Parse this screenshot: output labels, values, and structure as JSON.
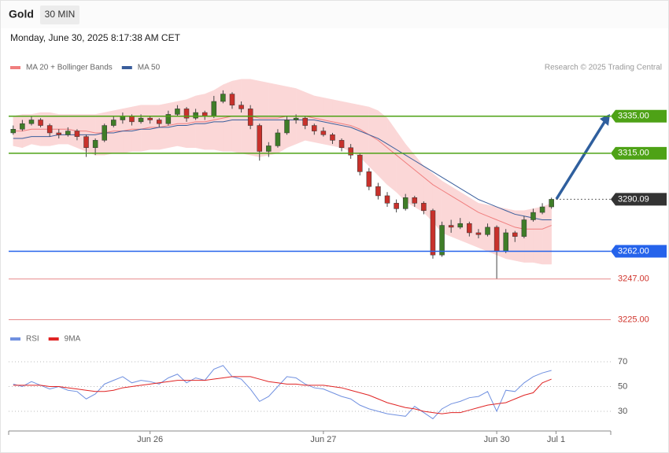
{
  "header": {
    "symbol": "Gold",
    "interval": "30 MIN",
    "timestamp": "Monday, June 30, 2025 8:17:38 AM CET"
  },
  "credit": "Research © 2025 Trading Central",
  "chart_data": [
    {
      "type": "candlestick",
      "up_color": "#3f7d28",
      "down_color": "#c8312b",
      "xlim": [
        -0.5,
        65.5
      ],
      "xticks": [
        {
          "value": 15,
          "label": "Jun 26"
        },
        {
          "value": 34,
          "label": "Jun 27"
        },
        {
          "value": 53,
          "label": "Jun 30"
        },
        {
          "value": 59.5,
          "label": "Jul 1"
        }
      ],
      "ylim": [
        3225,
        3360
      ],
      "candles": [
        [
          3326,
          3330,
          3325,
          3328
        ],
        [
          3328,
          3333,
          3327,
          3331
        ],
        [
          3331,
          3335,
          3330,
          3333
        ],
        [
          3333,
          3334,
          3329,
          3330
        ],
        [
          3330,
          3331,
          3324,
          3326
        ],
        [
          3326,
          3328,
          3323,
          3325
        ],
        [
          3325,
          3329,
          3324,
          3327
        ],
        [
          3327,
          3328,
          3322,
          3324
        ],
        [
          3324,
          3325,
          3313,
          3318
        ],
        [
          3318,
          3323,
          3314,
          3322
        ],
        [
          3322,
          3331,
          3321,
          3330
        ],
        [
          3330,
          3335,
          3329,
          3333
        ],
        [
          3333,
          3337,
          3331,
          3335
        ],
        [
          3335,
          3336,
          3330,
          3332
        ],
        [
          3332,
          3336,
          3331,
          3334
        ],
        [
          3334,
          3335,
          3331,
          3333
        ],
        [
          3333,
          3334,
          3329,
          3331
        ],
        [
          3331,
          3338,
          3330,
          3336
        ],
        [
          3336,
          3341,
          3335,
          3339
        ],
        [
          3339,
          3340,
          3332,
          3334
        ],
        [
          3334,
          3339,
          3333,
          3337
        ],
        [
          3337,
          3338,
          3333,
          3335
        ],
        [
          3335,
          3346,
          3334,
          3343
        ],
        [
          3343,
          3349,
          3342,
          3347
        ],
        [
          3347,
          3348,
          3339,
          3341
        ],
        [
          3341,
          3343,
          3337,
          3339
        ],
        [
          3339,
          3341,
          3328,
          3330
        ],
        [
          3330,
          3331,
          3311,
          3316
        ],
        [
          3316,
          3321,
          3313,
          3319
        ],
        [
          3319,
          3328,
          3318,
          3326
        ],
        [
          3326,
          3335,
          3325,
          3333
        ],
        [
          3333,
          3336,
          3331,
          3334
        ],
        [
          3334,
          3335,
          3328,
          3330
        ],
        [
          3330,
          3331,
          3325,
          3327
        ],
        [
          3327,
          3329,
          3324,
          3325
        ],
        [
          3325,
          3326,
          3320,
          3322
        ],
        [
          3322,
          3323,
          3316,
          3318
        ],
        [
          3318,
          3320,
          3312,
          3314
        ],
        [
          3314,
          3315,
          3303,
          3305
        ],
        [
          3305,
          3307,
          3295,
          3297
        ],
        [
          3297,
          3299,
          3290,
          3292
        ],
        [
          3292,
          3294,
          3286,
          3288
        ],
        [
          3288,
          3290,
          3283,
          3285
        ],
        [
          3285,
          3293,
          3284,
          3291
        ],
        [
          3291,
          3292,
          3286,
          3288
        ],
        [
          3288,
          3289,
          3282,
          3284
        ],
        [
          3284,
          3285,
          3258,
          3260
        ],
        [
          3260,
          3278,
          3259,
          3276
        ],
        [
          3276,
          3279,
          3272,
          3275
        ],
        [
          3275,
          3280,
          3274,
          3277
        ],
        [
          3277,
          3278,
          3270,
          3272
        ],
        [
          3272,
          3274,
          3269,
          3271
        ],
        [
          3271,
          3277,
          3270,
          3275
        ],
        [
          3275,
          3276,
          3247,
          3262
        ],
        [
          3262,
          3274,
          3261,
          3272
        ],
        [
          3272,
          3273,
          3267,
          3270
        ],
        [
          3270,
          3281,
          3269,
          3279
        ],
        [
          3279,
          3285,
          3278,
          3283
        ],
        [
          3283,
          3288,
          3282,
          3286
        ],
        [
          3286,
          3291,
          3285,
          3290.09
        ]
      ],
      "series": [
        {
          "name": "MA 20 + Bollinger Bands",
          "color": "#f07e7e",
          "band_color": "#fbd7d7",
          "values": [
            3327,
            3327,
            3328,
            3328,
            3328,
            3328,
            3328,
            3327,
            3327,
            3326,
            3326,
            3327,
            3327,
            3328,
            3328,
            3329,
            3329,
            3330,
            3331,
            3331,
            3332,
            3332,
            3333,
            3334,
            3335,
            3335,
            3335,
            3334,
            3334,
            3334,
            3335,
            3335,
            3335,
            3334,
            3333,
            3332,
            3331,
            3330,
            3328,
            3325,
            3322,
            3318,
            3314,
            3310,
            3306,
            3302,
            3298,
            3295,
            3292,
            3289,
            3286,
            3283,
            3281,
            3279,
            3277,
            3275,
            3274,
            3274,
            3274,
            3276
          ],
          "band_upper": [
            3335,
            3336,
            3336,
            3337,
            3337,
            3336,
            3336,
            3336,
            3336,
            3336,
            3337,
            3338,
            3339,
            3340,
            3341,
            3341,
            3341,
            3342,
            3343,
            3344,
            3346,
            3347,
            3349,
            3352,
            3354,
            3355,
            3355,
            3354,
            3353,
            3352,
            3351,
            3350,
            3348,
            3346,
            3345,
            3344,
            3343,
            3342,
            3341,
            3340,
            3338,
            3334,
            3327,
            3320,
            3314,
            3308,
            3304,
            3300,
            3297,
            3294,
            3291,
            3288,
            3287,
            3286,
            3285,
            3284,
            3284,
            3285,
            3286,
            3288
          ],
          "band_lower": [
            3319,
            3318,
            3320,
            3319,
            3319,
            3320,
            3320,
            3318,
            3316,
            3314,
            3314,
            3315,
            3315,
            3316,
            3316,
            3317,
            3317,
            3318,
            3319,
            3318,
            3318,
            3317,
            3317,
            3316,
            3316,
            3315,
            3314,
            3313,
            3314,
            3315,
            3318,
            3320,
            3322,
            3321,
            3320,
            3319,
            3318,
            3316,
            3313,
            3308,
            3303,
            3298,
            3294,
            3289,
            3286,
            3283,
            3278,
            3272,
            3270,
            3268,
            3266,
            3264,
            3262,
            3260,
            3258,
            3257,
            3256,
            3256,
            3255,
            3255
          ]
        },
        {
          "name": "MA 50",
          "color": "#3a5e9c",
          "values": [
            3323,
            3323,
            3324,
            3324,
            3324,
            3325,
            3325,
            3325,
            3325,
            3325,
            3326,
            3326,
            3327,
            3327,
            3328,
            3328,
            3329,
            3329,
            3330,
            3330,
            3331,
            3331,
            3332,
            3332,
            3333,
            3333,
            3333,
            3333,
            3333,
            3333,
            3333,
            3333,
            3333,
            3333,
            3332,
            3331,
            3330,
            3329,
            3327,
            3325,
            3323,
            3320,
            3317,
            3314,
            3311,
            3308,
            3305,
            3302,
            3299,
            3296,
            3293,
            3290,
            3288,
            3286,
            3284,
            3282,
            3281,
            3280,
            3279,
            3279
          ]
        }
      ],
      "levels": [
        {
          "value": 3335,
          "label": "3335.00",
          "color": "#4ea216",
          "style": "solid",
          "label_style": "box"
        },
        {
          "value": 3315,
          "label": "3315.00",
          "color": "#4ea216",
          "style": "solid",
          "label_style": "box"
        },
        {
          "value": 3290.09,
          "label": "3290.09",
          "color": "#333333",
          "style": "dotted",
          "label_style": "box"
        },
        {
          "value": 3262,
          "label": "3262.00",
          "color": "#2563eb",
          "style": "solid",
          "label_style": "box"
        },
        {
          "value": 3247,
          "label": "3247.00",
          "color": "#e8898a",
          "style": "solid",
          "label_style": "text"
        },
        {
          "value": 3225,
          "label": "3225.00",
          "color": "#e8898a",
          "style": "solid",
          "label_style": "text"
        }
      ]
    },
    {
      "type": "line",
      "xlim": [
        -0.5,
        65.5
      ],
      "ylim": [
        20,
        80
      ],
      "yticks": [
        30,
        50,
        70
      ],
      "grid": true,
      "series": [
        {
          "name": "RSI",
          "color": "#7090e0",
          "values": [
            52,
            50,
            54,
            51,
            48,
            50,
            47,
            46,
            40,
            44,
            52,
            55,
            58,
            53,
            55,
            54,
            52,
            57,
            60,
            53,
            57,
            55,
            64,
            67,
            58,
            56,
            48,
            38,
            42,
            50,
            58,
            57,
            52,
            49,
            48,
            45,
            42,
            40,
            35,
            32,
            30,
            28,
            27,
            26,
            34,
            29,
            24,
            32,
            36,
            38,
            41,
            42,
            46,
            30,
            47,
            46,
            53,
            58,
            61,
            63
          ]
        },
        {
          "name": "9MA",
          "color": "#e02424",
          "values": [
            51,
            51,
            51,
            51,
            50,
            50,
            49,
            48,
            47,
            46,
            46,
            47,
            49,
            50,
            51,
            52,
            53,
            54,
            55,
            55,
            55,
            55,
            56,
            57,
            58,
            58,
            58,
            56,
            54,
            53,
            52,
            52,
            51,
            51,
            51,
            50,
            49,
            47,
            45,
            43,
            40,
            37,
            35,
            33,
            32,
            30,
            29,
            28,
            29,
            29,
            31,
            33,
            35,
            36,
            37,
            40,
            43,
            45,
            53,
            56
          ]
        }
      ]
    }
  ]
}
